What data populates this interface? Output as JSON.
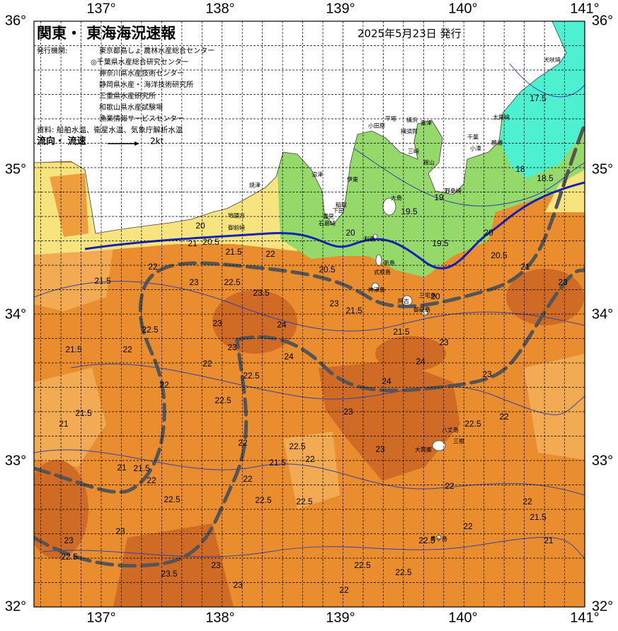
{
  "header": {
    "title": "関東・ 東海海況速報",
    "issued": "2025年5月23日 発行",
    "org_label": "発行機関:",
    "orgs": [
      "東京都島しょ 農林水産総合センター",
      "◎千葉県水産総合研究センター",
      "神奈川県水産技術センター",
      "静岡県水産・ 海洋技術研究所",
      "三重県水産研究所",
      "和歌山県水産試験場",
      "漁業情報サービスセンター"
    ],
    "source": "資料: 船舶水温、衛星水温、気象庁解析水温",
    "flow_label": "流向・ 流速",
    "flow_scale": "2kt"
  },
  "axes": {
    "lon_labels": [
      "137°",
      "138°",
      "139°",
      "140°",
      "141°"
    ],
    "lat_labels": [
      "36°",
      "35°",
      "34°",
      "33°",
      "32°"
    ]
  },
  "places": [
    "犬吠埼",
    "太東崎",
    "勝浦",
    "小湊",
    "千葉",
    "富津",
    "館山",
    "野島崎",
    "横浜",
    "横須賀",
    "三崎",
    "平塚",
    "小田原",
    "伊東",
    "稲取",
    "下田",
    "雲見",
    "石廊崎",
    "沼津",
    "焼津",
    "地頭方",
    "御前崎",
    "大島",
    "利島",
    "新島",
    "式根島",
    "神津島",
    "三宅島",
    "阿古",
    "御蔵島",
    "八丈島",
    "三根",
    "大賀郷",
    "青ヶ島"
  ],
  "contour_labels": [
    "17.5",
    "18.5",
    "18",
    "19",
    "19.5",
    "20",
    "20",
    "21",
    "20.5",
    "22",
    "21.5",
    "22",
    "23",
    "22.5",
    "21.5",
    "23.5",
    "23",
    "22.5",
    "24",
    "23",
    "21.5",
    "22",
    "21.5",
    "23",
    "22",
    "22.5",
    "24",
    "21.5",
    "24",
    "23",
    "24",
    "23",
    "22",
    "22.5",
    "21.5",
    "21",
    "23",
    "22.5",
    "22",
    "22",
    "22.5",
    "22",
    "23",
    "21.5",
    "21.5",
    "21",
    "22",
    "22.5",
    "22",
    "22.5",
    "22.5",
    "22",
    "22",
    "21.5",
    "21",
    "23",
    "23",
    "22.5",
    "22",
    "22.5",
    "23",
    "23.5",
    "23",
    "22",
    "22.5",
    "22.5",
    "20",
    "19.5",
    "20.5",
    "20",
    "20.5",
    "23",
    "21"
  ]
}
